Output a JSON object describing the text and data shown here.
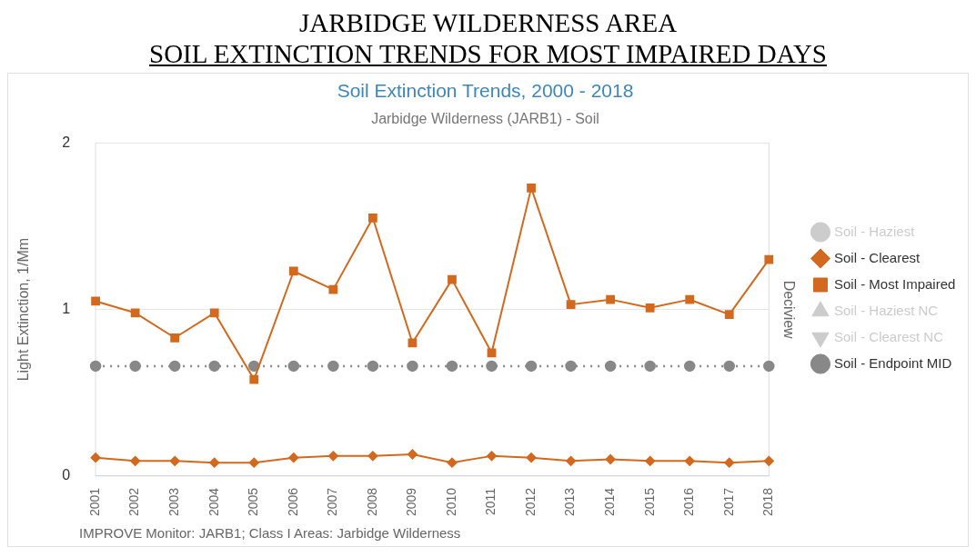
{
  "chart_data": {
    "type": "line",
    "title": "JARBIDGE WILDERNESS AREA\nSOIL EXTINCTION TRENDS FOR MOST IMPAIRED DAYS",
    "subtitle": "Soil Extinction Trends, 2000 - 2018",
    "ylabel": "Light Extinction, 1/Mm",
    "y2label": "Deciview",
    "annotations": [
      "Jarbidge Wilderness (JARB1) - Soil",
      "IMPROVE Monitor: JARB1; Class I Areas: Jarbidge Wilderness"
    ],
    "categories": [
      "2001",
      "2002",
      "2003",
      "2004",
      "2005",
      "2006",
      "2007",
      "2008",
      "2009",
      "2010",
      "2011",
      "2012",
      "2013",
      "2014",
      "2015",
      "2016",
      "2017",
      "2018"
    ],
    "series": [
      {
        "name": "Soil - Haziest",
        "color": "#cccccc",
        "marker": "circle",
        "values": [
          null,
          null,
          null,
          null,
          null,
          null,
          null,
          null,
          null,
          null,
          null,
          null,
          null,
          null,
          null,
          null,
          null,
          null
        ]
      },
      {
        "name": "Soil - Clearest",
        "color": "#d2691e",
        "marker": "diamond",
        "values": [
          0.11,
          0.09,
          0.09,
          0.08,
          0.08,
          0.11,
          0.12,
          0.12,
          0.13,
          0.08,
          0.12,
          0.11,
          0.09,
          0.1,
          0.09,
          0.09,
          0.08,
          0.09
        ]
      },
      {
        "name": "Soil - Most Impaired",
        "color": "#d2691e",
        "marker": "square",
        "values": [
          1.05,
          0.98,
          0.83,
          0.98,
          0.58,
          1.23,
          1.12,
          1.55,
          0.8,
          1.18,
          0.74,
          1.73,
          1.03,
          1.06,
          1.01,
          1.06,
          0.97,
          1.3
        ]
      },
      {
        "name": "Soil - Haziest NC",
        "color": "#cccccc",
        "marker": "triangle",
        "values": [
          null,
          null,
          null,
          null,
          null,
          null,
          null,
          null,
          null,
          null,
          null,
          null,
          null,
          null,
          null,
          null,
          null,
          null
        ]
      },
      {
        "name": "Soil - Clearest NC",
        "color": "#cccccc",
        "marker": "triangle-down",
        "line_style": "dotted",
        "values": [
          null,
          null,
          null,
          null,
          null,
          null,
          null,
          null,
          null,
          null,
          null,
          null,
          null,
          null,
          null,
          null,
          null,
          null
        ]
      },
      {
        "name": "Soil - Endpoint MID",
        "color": "#888888",
        "marker": "circle",
        "line_style": "dotted",
        "values": [
          0.66,
          0.66,
          0.66,
          0.66,
          0.66,
          0.66,
          0.66,
          0.66,
          0.66,
          0.66,
          0.66,
          0.66,
          0.66,
          0.66,
          0.66,
          0.66,
          0.66,
          0.66
        ]
      }
    ],
    "ylim": [
      0,
      2
    ],
    "yticks": [
      0,
      1,
      2
    ],
    "grid": "y",
    "legend": "right"
  }
}
